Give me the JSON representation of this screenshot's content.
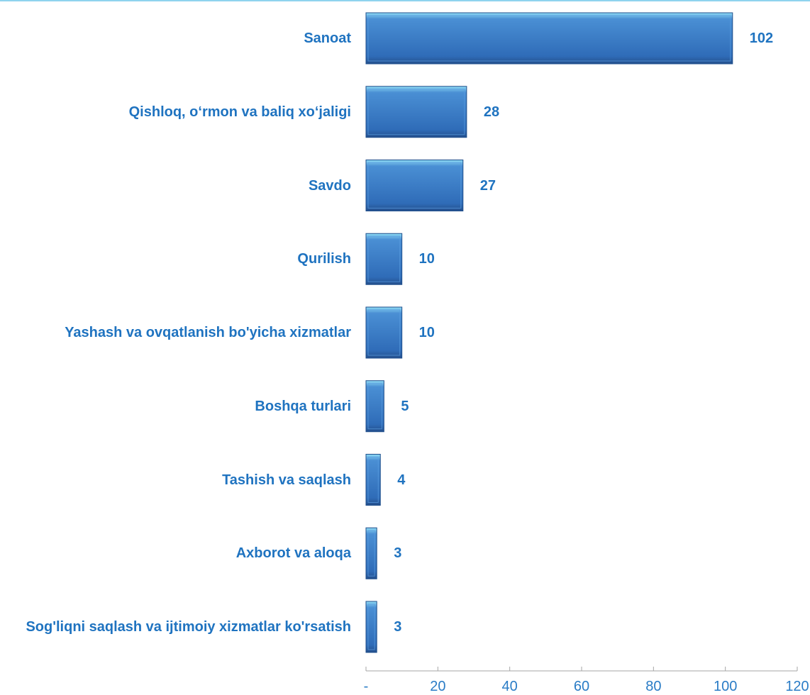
{
  "chart_data": {
    "type": "barh",
    "categories": [
      "Sanoat",
      "Qishloq, o‘rmon va baliq xo‘jaligi",
      "Savdo",
      "Qurilish",
      "Yashash va ovqatlanish bo'yicha xizmatlar",
      "Boshqa turlari",
      "Tashish va saqlash",
      "Axborot va aloqa",
      "Sog'liqni saqlash va ijtimoiy xizmatlar ko'rsatish"
    ],
    "values": [
      102,
      28,
      27,
      10,
      10,
      5,
      4,
      3,
      3
    ],
    "color": "#3a7cc8",
    "xlim": [
      0,
      120
    ],
    "xticks": [
      {
        "value": 0,
        "label": "-"
      },
      20,
      40,
      60,
      80,
      100,
      120
    ]
  }
}
